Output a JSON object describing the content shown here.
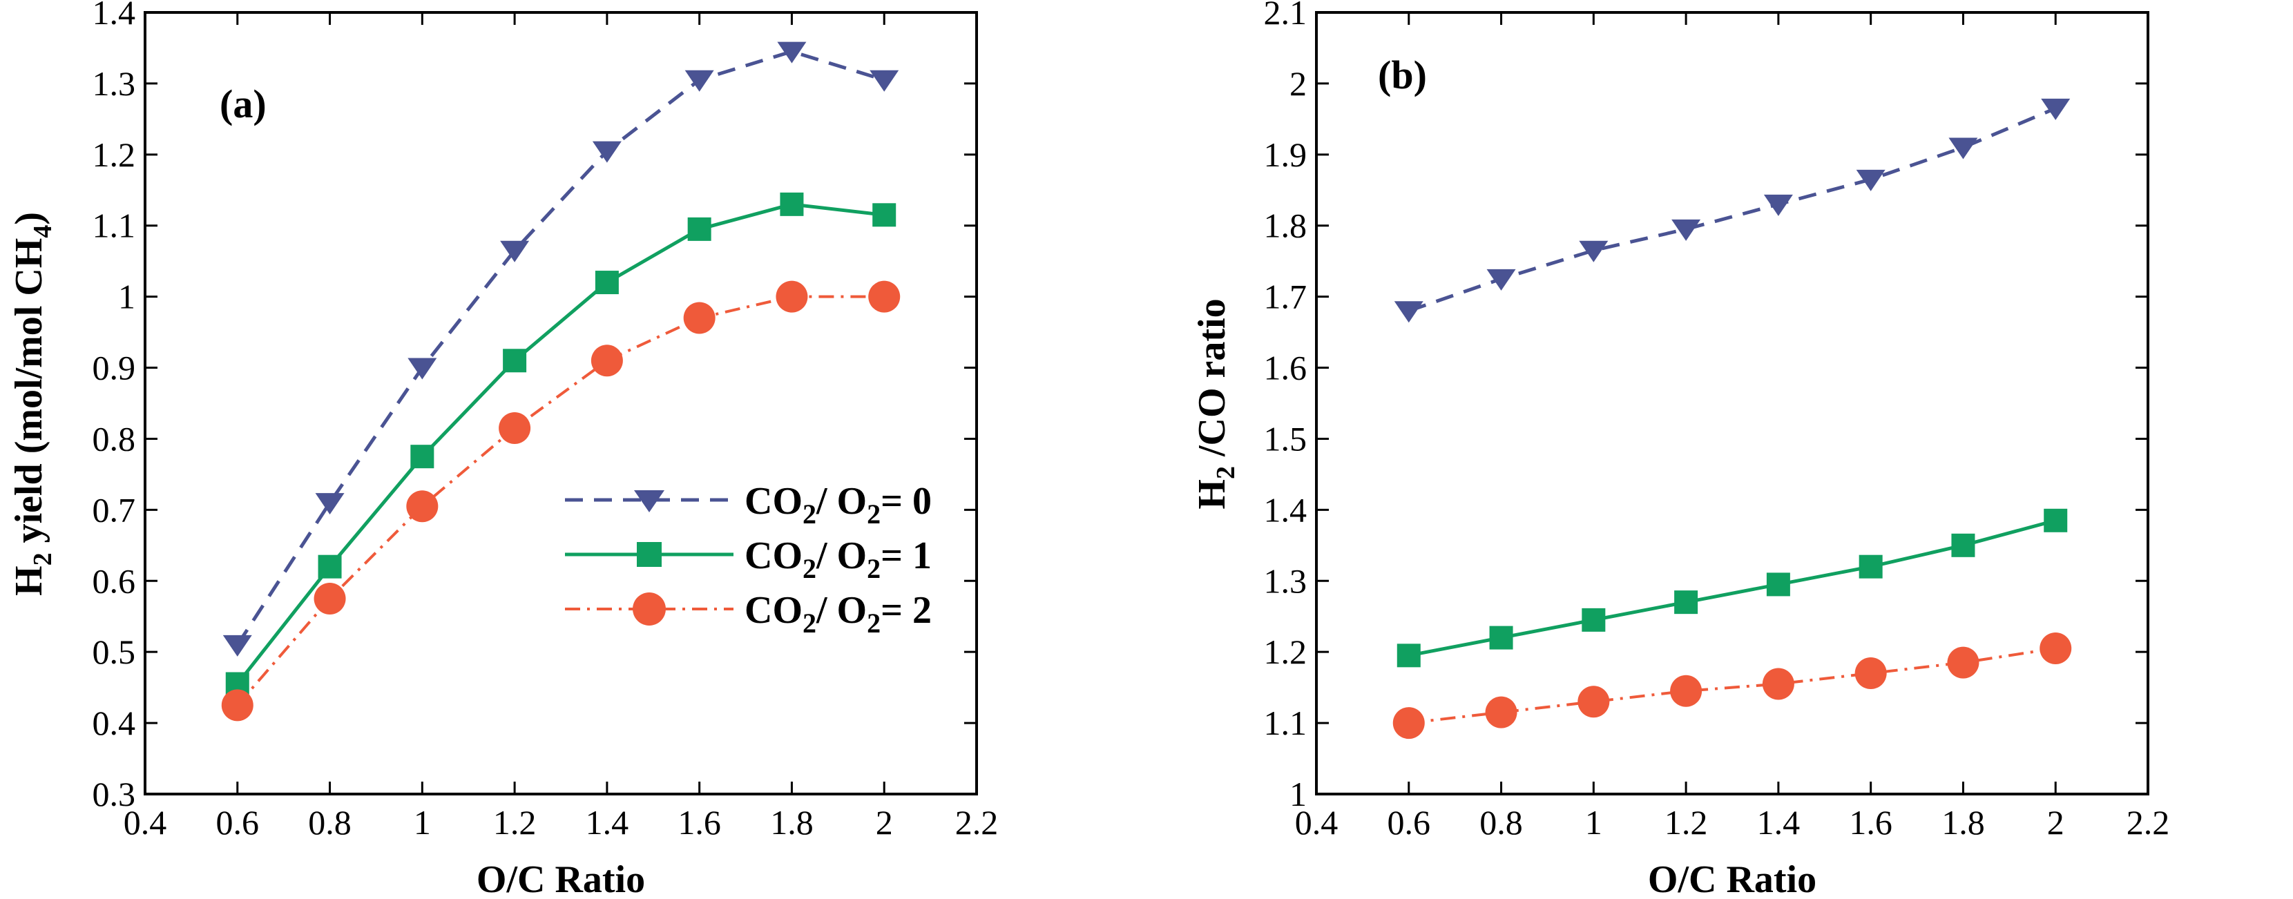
{
  "figure": {
    "colors": {
      "series0": "#4a5393",
      "series1": "#10a060",
      "series2": "#ef5a3a",
      "axis": "#000000",
      "background": "#ffffff"
    }
  },
  "chart_data": [
    {
      "panel": "(a)",
      "type": "line",
      "xlabel": "O/C Ratio",
      "ylabel": "H2 yield (mol/mol CH4)",
      "ylabel_parts": {
        "a": "H",
        "sub1": "2",
        "b": " yield (mol/mol CH",
        "sub2": "4",
        "c": ")"
      },
      "xlim": [
        0.4,
        2.2
      ],
      "ylim": [
        0.3,
        1.4
      ],
      "xticks": [
        "0.4",
        "0.6",
        "0.8",
        "1",
        "1.2",
        "1.4",
        "1.6",
        "1.8",
        "2",
        "2.2"
      ],
      "yticks": [
        "0.3",
        "0.4",
        "0.5",
        "0.6",
        "0.7",
        "0.8",
        "0.9",
        "1",
        "1.1",
        "1.2",
        "1.3",
        "1.4"
      ],
      "x": [
        0.6,
        0.8,
        1.0,
        1.2,
        1.4,
        1.6,
        1.8,
        2.0
      ],
      "legend_position": "center-right",
      "series": [
        {
          "name": "CO2/ O2= 0",
          "label_parts": {
            "a": "CO",
            "sub1": "2",
            "b": "/ O",
            "sub2": "2",
            "c": "= 0"
          },
          "marker": "triangle-down",
          "linestyle": "dashed",
          "values": [
            0.51,
            0.71,
            0.9,
            1.065,
            1.205,
            1.305,
            1.345,
            1.305
          ]
        },
        {
          "name": "CO2/ O2= 1",
          "label_parts": {
            "a": "CO",
            "sub1": "2",
            "b": "/ O",
            "sub2": "2",
            "c": "= 1"
          },
          "marker": "square",
          "linestyle": "solid",
          "values": [
            0.455,
            0.62,
            0.775,
            0.91,
            1.02,
            1.095,
            1.13,
            1.115
          ]
        },
        {
          "name": "CO2/ O2= 2",
          "label_parts": {
            "a": "CO",
            "sub1": "2",
            "b": "/ O",
            "sub2": "2",
            "c": "= 2"
          },
          "marker": "circle",
          "linestyle": "dashdot",
          "values": [
            0.425,
            0.575,
            0.705,
            0.815,
            0.91,
            0.97,
            1.0,
            1.0
          ]
        }
      ]
    },
    {
      "panel": "(b)",
      "type": "line",
      "xlabel": "O/C Ratio",
      "ylabel": "H2 /CO ratio",
      "ylabel_parts": {
        "a": "H",
        "sub1": "2",
        "b": " /CO ratio"
      },
      "xlim": [
        0.4,
        2.2
      ],
      "ylim": [
        1.0,
        2.1
      ],
      "xticks": [
        "0.4",
        "0.6",
        "0.8",
        "1",
        "1.2",
        "1.4",
        "1.6",
        "1.8",
        "2",
        "2.2"
      ],
      "yticks": [
        "1",
        "1.1",
        "1.2",
        "1.3",
        "1.4",
        "1.5",
        "1.6",
        "1.7",
        "1.8",
        "1.9",
        "2",
        "2.1"
      ],
      "x": [
        0.6,
        0.8,
        1.0,
        1.2,
        1.4,
        1.6,
        1.8,
        2.0
      ],
      "series": [
        {
          "name": "CO2/ O2= 0",
          "marker": "triangle-down",
          "linestyle": "dashed",
          "values": [
            1.68,
            1.725,
            1.765,
            1.795,
            1.83,
            1.865,
            1.91,
            1.965
          ]
        },
        {
          "name": "CO2/ O2= 1",
          "marker": "square",
          "linestyle": "solid",
          "values": [
            1.195,
            1.22,
            1.245,
            1.27,
            1.295,
            1.32,
            1.35,
            1.385
          ]
        },
        {
          "name": "CO2/ O2= 2",
          "marker": "circle",
          "linestyle": "dashdot",
          "values": [
            1.1,
            1.115,
            1.13,
            1.145,
            1.155,
            1.17,
            1.185,
            1.205
          ]
        }
      ]
    }
  ]
}
